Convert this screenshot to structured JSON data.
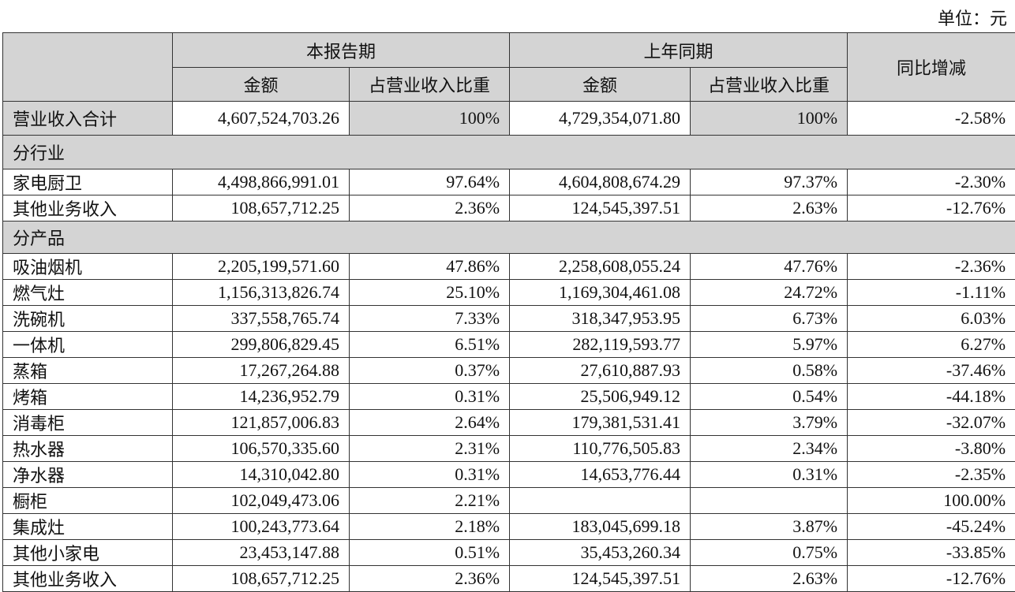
{
  "unit_label": "单位：元",
  "header": {
    "current_period": "本报告期",
    "prior_period": "上年同期",
    "amount": "金额",
    "share": "占营业收入比重",
    "yoy": "同比增减"
  },
  "total": {
    "label": "营业收入合计",
    "cur_amount": "4,607,524,703.26",
    "cur_share": "100%",
    "prev_amount": "4,729,354,071.80",
    "prev_share": "100%",
    "yoy": "-2.58%"
  },
  "sections": [
    {
      "title": "分行业",
      "rows": [
        {
          "label": "家电厨卫",
          "cur_amount": "4,498,866,991.01",
          "cur_share": "97.64%",
          "prev_amount": "4,604,808,674.29",
          "prev_share": "97.37%",
          "yoy": "-2.30%"
        },
        {
          "label": "其他业务收入",
          "cur_amount": "108,657,712.25",
          "cur_share": "2.36%",
          "prev_amount": "124,545,397.51",
          "prev_share": "2.63%",
          "yoy": "-12.76%"
        }
      ]
    },
    {
      "title": "分产品",
      "rows": [
        {
          "label": "吸油烟机",
          "cur_amount": "2,205,199,571.60",
          "cur_share": "47.86%",
          "prev_amount": "2,258,608,055.24",
          "prev_share": "47.76%",
          "yoy": "-2.36%"
        },
        {
          "label": "燃气灶",
          "cur_amount": "1,156,313,826.74",
          "cur_share": "25.10%",
          "prev_amount": "1,169,304,461.08",
          "prev_share": "24.72%",
          "yoy": "-1.11%"
        },
        {
          "label": "洗碗机",
          "cur_amount": "337,558,765.74",
          "cur_share": "7.33%",
          "prev_amount": "318,347,953.95",
          "prev_share": "6.73%",
          "yoy": "6.03%"
        },
        {
          "label": "一体机",
          "cur_amount": "299,806,829.45",
          "cur_share": "6.51%",
          "prev_amount": "282,119,593.77",
          "prev_share": "5.97%",
          "yoy": "6.27%"
        },
        {
          "label": "蒸箱",
          "cur_amount": "17,267,264.88",
          "cur_share": "0.37%",
          "prev_amount": "27,610,887.93",
          "prev_share": "0.58%",
          "yoy": "-37.46%"
        },
        {
          "label": "烤箱",
          "cur_amount": "14,236,952.79",
          "cur_share": "0.31%",
          "prev_amount": "25,506,949.12",
          "prev_share": "0.54%",
          "yoy": "-44.18%"
        },
        {
          "label": "消毒柜",
          "cur_amount": "121,857,006.83",
          "cur_share": "2.64%",
          "prev_amount": "179,381,531.41",
          "prev_share": "3.79%",
          "yoy": "-32.07%"
        },
        {
          "label": "热水器",
          "cur_amount": "106,570,335.60",
          "cur_share": "2.31%",
          "prev_amount": "110,776,505.83",
          "prev_share": "2.34%",
          "yoy": "-3.80%"
        },
        {
          "label": "净水器",
          "cur_amount": "14,310,042.80",
          "cur_share": "0.31%",
          "prev_amount": "14,653,776.44",
          "prev_share": "0.31%",
          "yoy": "-2.35%"
        },
        {
          "label": "橱柜",
          "cur_amount": "102,049,473.06",
          "cur_share": "2.21%",
          "prev_amount": "",
          "prev_share": "",
          "yoy": "100.00%"
        },
        {
          "label": "集成灶",
          "cur_amount": "100,243,773.64",
          "cur_share": "2.18%",
          "prev_amount": "183,045,699.18",
          "prev_share": "3.87%",
          "yoy": "-45.24%"
        },
        {
          "label": "其他小家电",
          "cur_amount": "23,453,147.88",
          "cur_share": "0.51%",
          "prev_amount": "35,453,260.34",
          "prev_share": "0.75%",
          "yoy": "-33.85%"
        },
        {
          "label": "其他业务收入",
          "cur_amount": "108,657,712.25",
          "cur_share": "2.36%",
          "prev_amount": "124,545,397.51",
          "prev_share": "2.63%",
          "yoy": "-12.76%"
        }
      ]
    }
  ]
}
